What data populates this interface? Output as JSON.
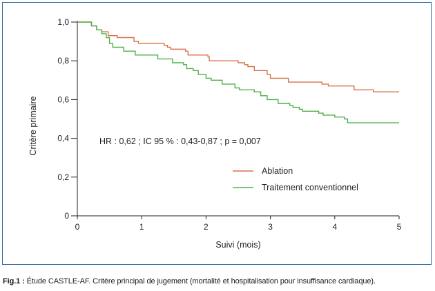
{
  "chart_data": {
    "type": "line",
    "xlabel": "Suivi (mois)",
    "ylabel": "Critère primaire",
    "xlim": [
      0,
      5
    ],
    "ylim": [
      0,
      1
    ],
    "x_ticks": [
      0,
      1,
      2,
      3,
      4,
      5
    ],
    "x_tick_labels": [
      "0",
      "1",
      "2",
      "3",
      "4",
      "5"
    ],
    "y_ticks": [
      0,
      0.2,
      0.4,
      0.6,
      0.8,
      1.0
    ],
    "y_tick_labels": [
      "0",
      "0,2",
      "0,4",
      "0,6",
      "0,8",
      "1,0"
    ],
    "grid": false,
    "legend_position": "center-right",
    "annotation": "HR : 0,62 ; IC 95 % : 0,43-0,87 ; p = 0,007",
    "series": [
      {
        "name": "Ablation",
        "color": "#d9714a",
        "step_points": [
          [
            0,
            1.0
          ],
          [
            0.1,
            1.0
          ],
          [
            0.22,
            0.98
          ],
          [
            0.3,
            0.96
          ],
          [
            0.38,
            0.95
          ],
          [
            0.48,
            0.93
          ],
          [
            0.62,
            0.92
          ],
          [
            0.88,
            0.9
          ],
          [
            0.95,
            0.89
          ],
          [
            1.35,
            0.88
          ],
          [
            1.4,
            0.87
          ],
          [
            1.45,
            0.86
          ],
          [
            1.68,
            0.85
          ],
          [
            1.72,
            0.83
          ],
          [
            2.03,
            0.82
          ],
          [
            2.05,
            0.8
          ],
          [
            2.5,
            0.79
          ],
          [
            2.6,
            0.78
          ],
          [
            2.65,
            0.77
          ],
          [
            2.75,
            0.75
          ],
          [
            2.95,
            0.73
          ],
          [
            3.0,
            0.71
          ],
          [
            3.28,
            0.69
          ],
          [
            3.8,
            0.68
          ],
          [
            3.9,
            0.67
          ],
          [
            4.3,
            0.665
          ],
          [
            4.3,
            0.65
          ],
          [
            4.6,
            0.64
          ],
          [
            5.0,
            0.64
          ]
        ]
      },
      {
        "name": "Traitement conventionnel",
        "color": "#4db14a",
        "step_points": [
          [
            0,
            1.0
          ],
          [
            0.12,
            1.0
          ],
          [
            0.22,
            0.98
          ],
          [
            0.3,
            0.96
          ],
          [
            0.38,
            0.94
          ],
          [
            0.45,
            0.92
          ],
          [
            0.5,
            0.89
          ],
          [
            0.55,
            0.87
          ],
          [
            0.72,
            0.85
          ],
          [
            0.9,
            0.83
          ],
          [
            1.25,
            0.81
          ],
          [
            1.48,
            0.79
          ],
          [
            1.65,
            0.78
          ],
          [
            1.7,
            0.76
          ],
          [
            1.8,
            0.75
          ],
          [
            1.88,
            0.73
          ],
          [
            2.0,
            0.71
          ],
          [
            2.08,
            0.7
          ],
          [
            2.25,
            0.68
          ],
          [
            2.45,
            0.66
          ],
          [
            2.52,
            0.65
          ],
          [
            2.75,
            0.64
          ],
          [
            2.85,
            0.62
          ],
          [
            2.95,
            0.6
          ],
          [
            3.1,
            0.6
          ],
          [
            3.12,
            0.58
          ],
          [
            3.3,
            0.57
          ],
          [
            3.35,
            0.56
          ],
          [
            3.45,
            0.55
          ],
          [
            3.5,
            0.54
          ],
          [
            3.75,
            0.53
          ],
          [
            3.82,
            0.52
          ],
          [
            4.0,
            0.51
          ],
          [
            4.15,
            0.5
          ],
          [
            4.2,
            0.48
          ],
          [
            5.0,
            0.48
          ]
        ]
      }
    ]
  },
  "caption": {
    "lead": "Fig.1 :",
    "text": " Étude CASTLE-AF. Critère principal de jugement (mortalité et hospitalisation pour insuffisance cardiaque)."
  }
}
